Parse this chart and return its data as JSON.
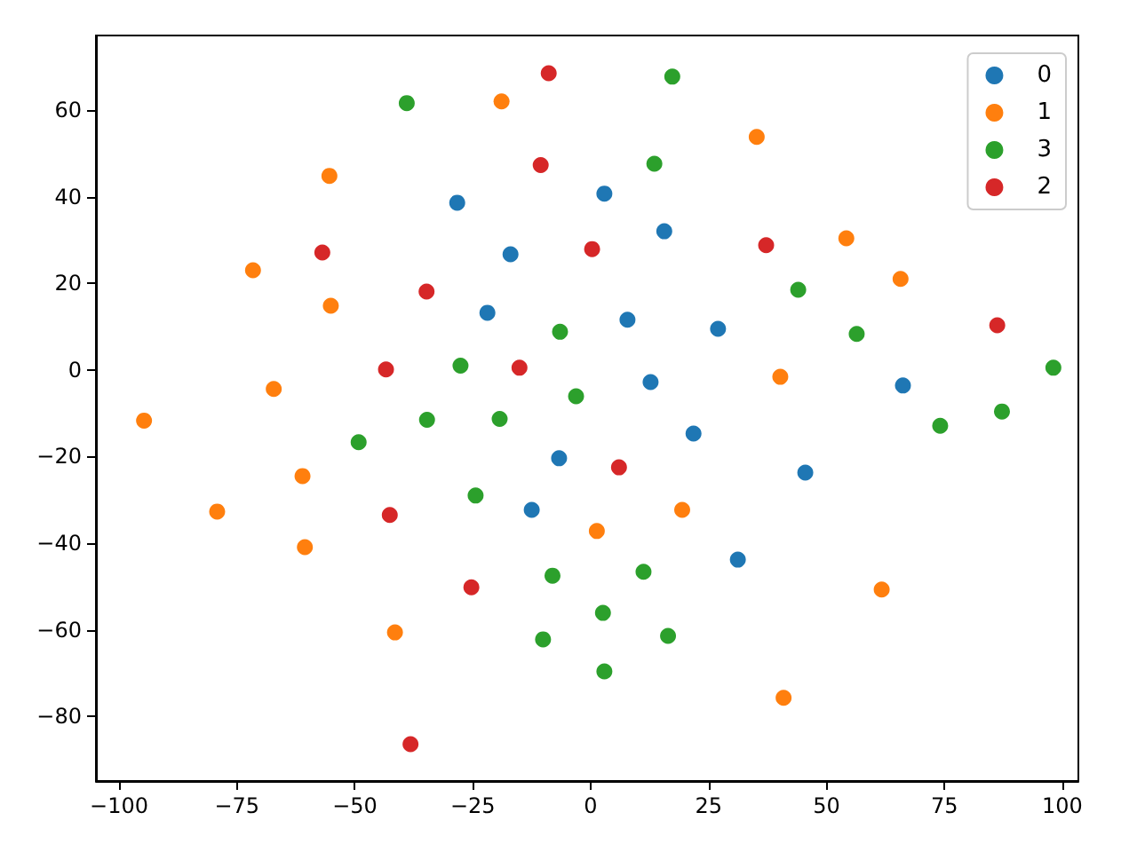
{
  "chart_data": {
    "type": "scatter",
    "xlim": [
      -104.9,
      103.4
    ],
    "ylim": [
      -94.9,
      77.2
    ],
    "xticks": [
      -100,
      -75,
      -50,
      -25,
      0,
      25,
      50,
      75,
      100
    ],
    "yticks": [
      -80,
      -60,
      -40,
      -20,
      0,
      20,
      40,
      60
    ],
    "grid": false,
    "legend": "top right",
    "marker": "circle",
    "series": [
      {
        "name": "0",
        "color": "#1f77b4",
        "x": [
          -28.3,
          2.9,
          15.6,
          -17,
          -21.9,
          7.8,
          27,
          12.7,
          66.2,
          21.8,
          -6.7,
          45.5,
          -12.5,
          31.2
        ],
        "values": [
          38.6,
          40.7,
          32,
          26.7,
          13.2,
          11.6,
          9.5,
          -2.8,
          -3.6,
          -14.7,
          -20.4,
          -23.7,
          -32.3,
          -43.8
        ]
      },
      {
        "name": "1",
        "color": "#ff7f0e",
        "x": [
          -18.9,
          35.2,
          -55.4,
          54.2,
          -71.6,
          65.7,
          -55.1,
          40.2,
          -67.2,
          -94.7,
          -61.1,
          -79.2,
          19.4,
          1.3,
          -60.6,
          -41.5,
          61.7,
          40.9
        ],
        "values": [
          62,
          53.8,
          44.8,
          30.4,
          23,
          21,
          14.8,
          -1.6,
          -4.4,
          -11.7,
          -24.5,
          -32.7,
          -32.3,
          -37.2,
          -40.9,
          -60.6,
          -50.7,
          -75.7
        ]
      },
      {
        "name": "3",
        "color": "#2ca02c",
        "x": [
          -39,
          17.3,
          13.5,
          44,
          -6.5,
          56.4,
          -27.6,
          98.1,
          -3.1,
          -34.7,
          -19.3,
          87.2,
          74.1,
          -49.2,
          -24.4,
          11.2,
          -8.1,
          2.6,
          16.4,
          -10.1,
          2.9
        ],
        "values": [
          61.6,
          67.7,
          47.6,
          18.5,
          8.8,
          8.3,
          1,
          0.5,
          -6.1,
          -11.5,
          -11.3,
          -9.6,
          -12.9,
          -16.7,
          -29,
          -46.6,
          -47.5,
          -56.1,
          -61.4,
          -62.2,
          -69.6
        ]
      },
      {
        "name": "2",
        "color": "#d62728",
        "x": [
          -8.9,
          -10.6,
          0.3,
          37.2,
          -56.9,
          -34.8,
          86.2,
          -43.4,
          -15.1,
          6,
          -42.6,
          -25.3,
          -38.2
        ],
        "values": [
          68.5,
          47.3,
          27.9,
          28.8,
          27.1,
          18.1,
          10.3,
          0.1,
          0.5,
          -22.5,
          -33.5,
          -50.2,
          -86.4
        ]
      }
    ]
  }
}
